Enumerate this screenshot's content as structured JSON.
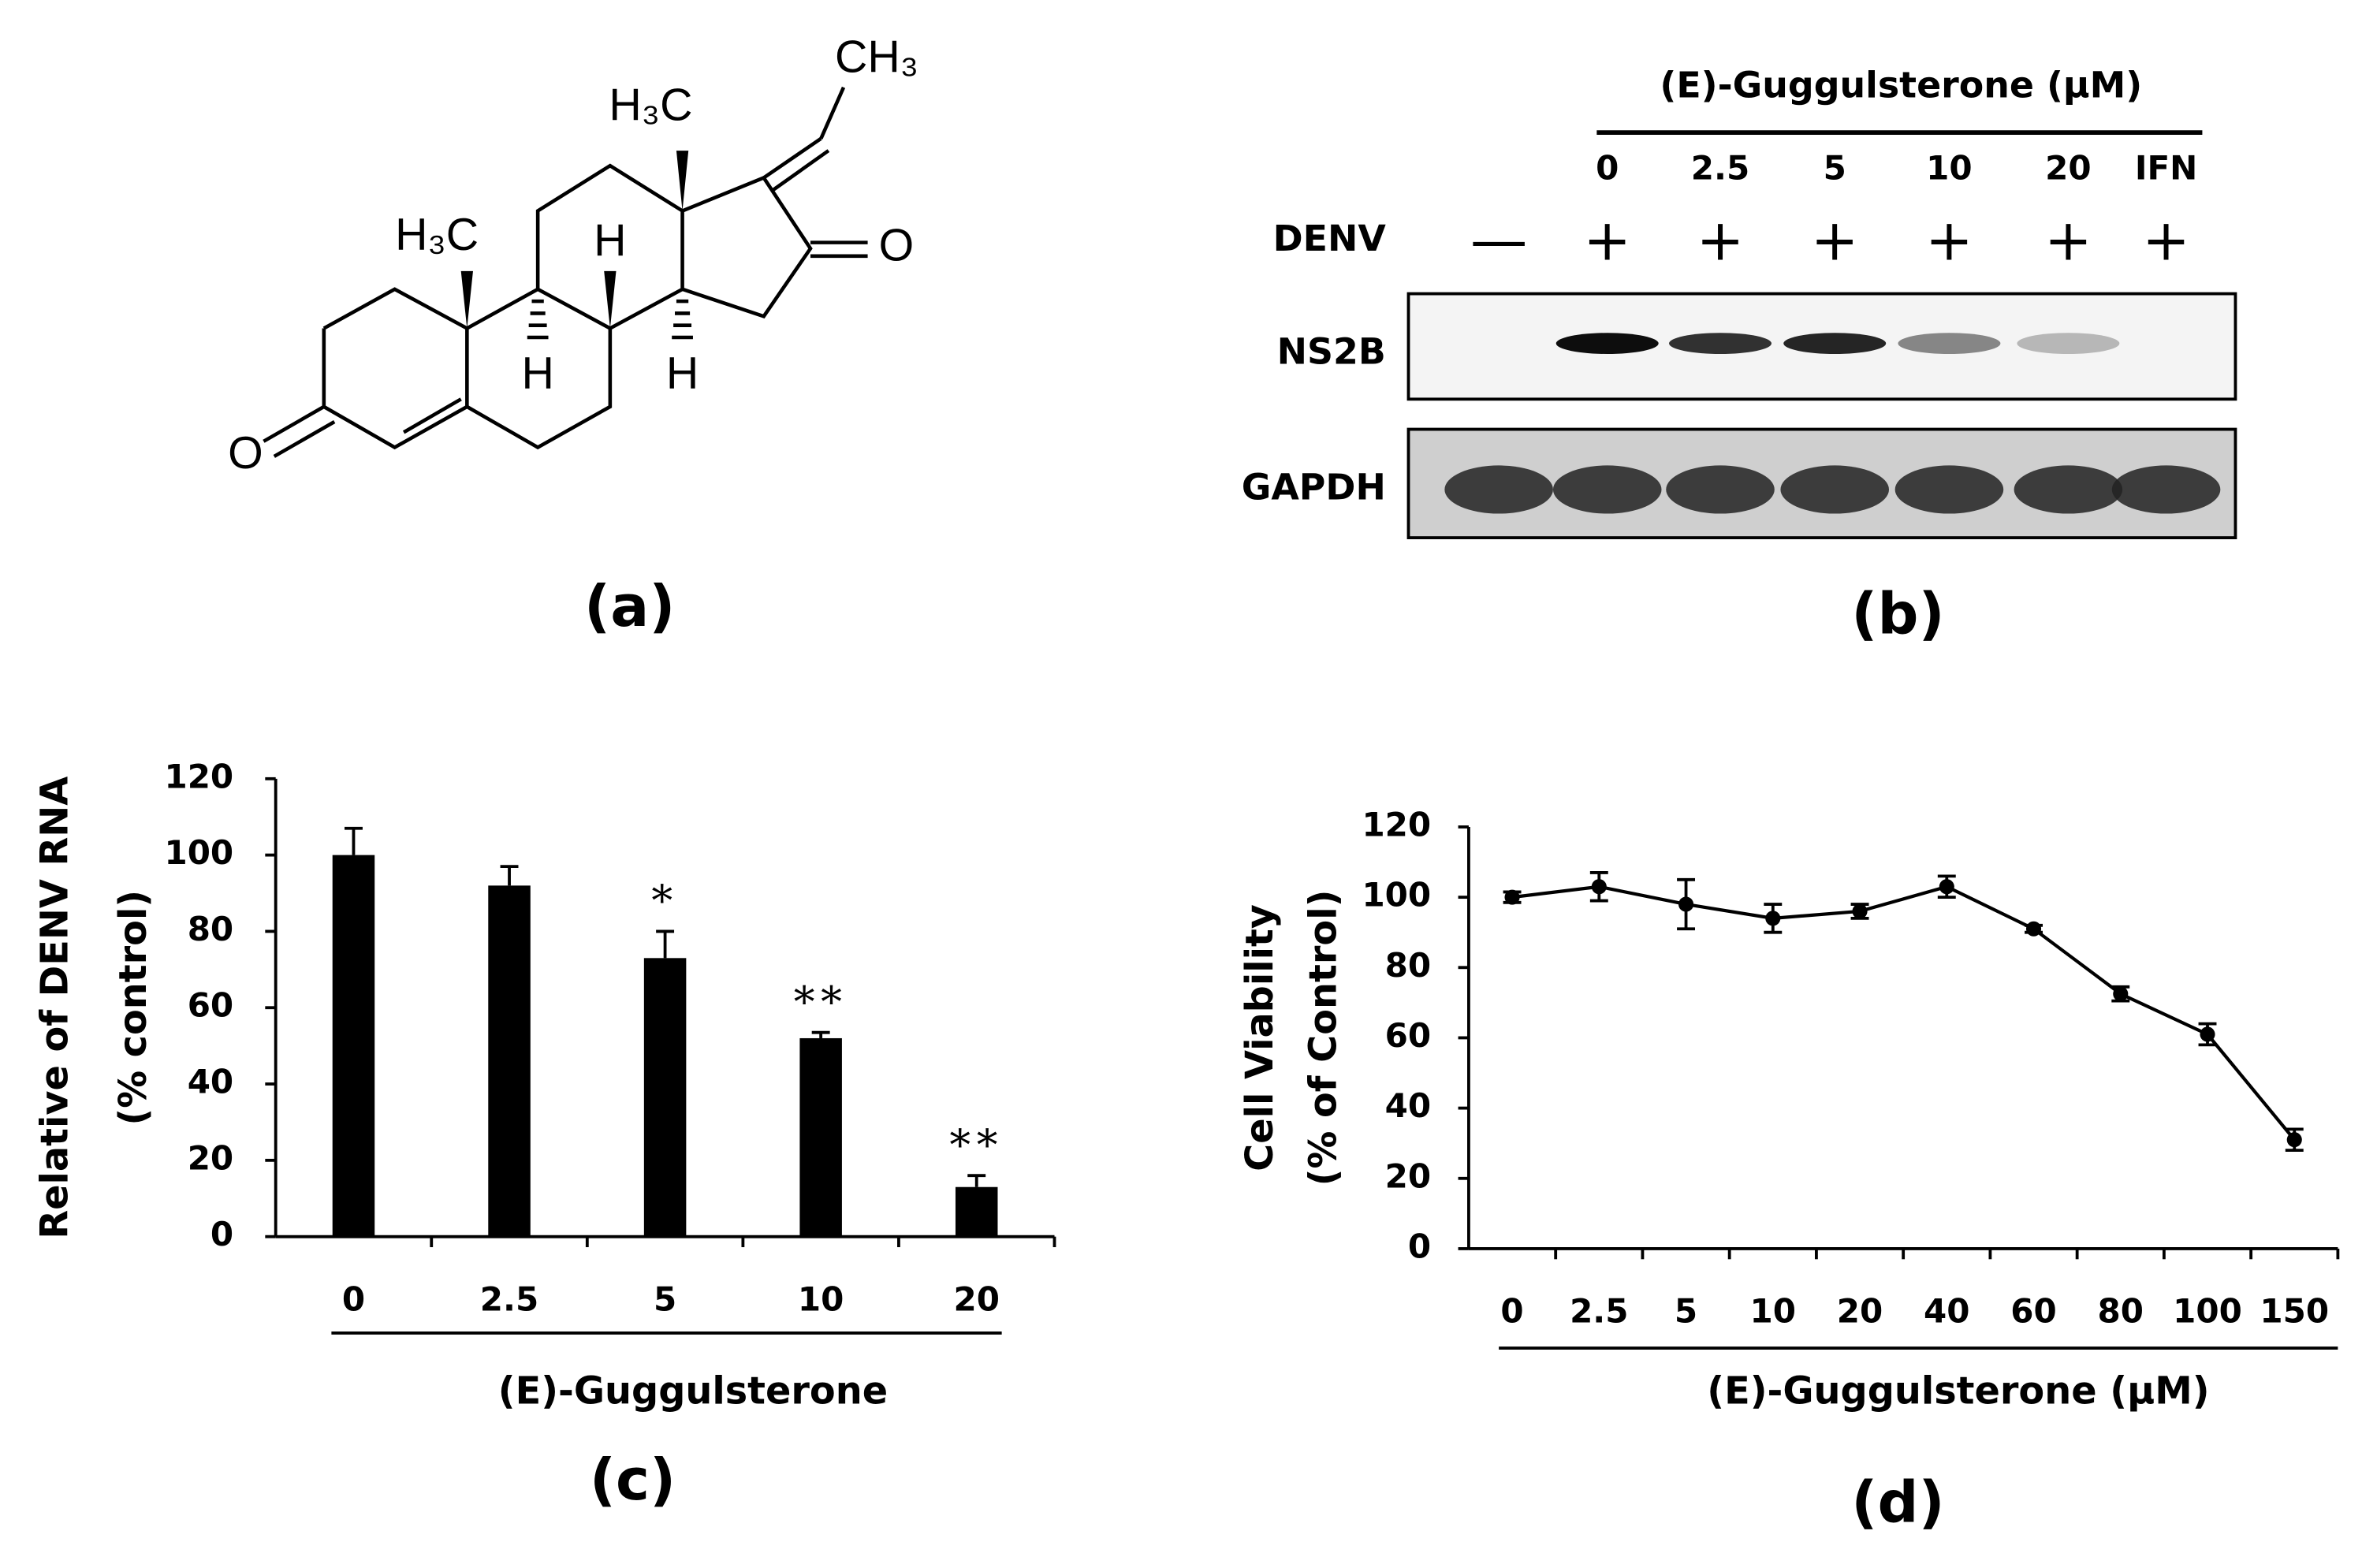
{
  "structure": {
    "label": "(a)",
    "atoms": [
      "CH₃",
      "H₃C",
      "H₃C",
      "O",
      "H",
      "H",
      "H",
      "O"
    ]
  },
  "blot": {
    "label": "(b)",
    "treatment": "(E)-Guggulsterone (μM)",
    "lanes": [
      "0",
      "2.5",
      "5",
      "10",
      "20",
      "IFN"
    ],
    "rows": [
      "DENV",
      "NS2B",
      "GAPDH"
    ],
    "denv": [
      "—",
      "+",
      "+",
      "+",
      "+",
      "+",
      "+"
    ]
  },
  "chart_data": [
    {
      "type": "bar",
      "panel_label": "(c)",
      "ylabel": [
        "Relative of DENV RNA",
        "(% control)"
      ],
      "xlabel": "(E)-Guggulsterone",
      "categories": [
        "0",
        "2.5",
        "5",
        "10",
        "20"
      ],
      "values": [
        100,
        92,
        73,
        52,
        13
      ],
      "errors": [
        7,
        5,
        7,
        1.5,
        3
      ],
      "significance": [
        null,
        null,
        "*",
        "**",
        "**"
      ],
      "color": "#000000",
      "ylim": [
        0,
        120
      ],
      "yticks": [
        0,
        20,
        40,
        60,
        80,
        100,
        120
      ]
    },
    {
      "type": "line",
      "panel_label": "(d)",
      "ylabel": [
        "Cell Viability",
        "(% of Control)"
      ],
      "xlabel": "(E)-Guggulsterone (μM)",
      "categories": [
        "0",
        "2.5",
        "5",
        "10",
        "20",
        "40",
        "60",
        "80",
        "100",
        "150"
      ],
      "values": [
        100,
        103,
        98,
        94,
        96,
        103,
        91,
        72.5,
        61,
        31
      ],
      "errors": [
        1.5,
        4,
        7,
        4,
        2,
        3,
        1,
        2,
        3,
        3
      ],
      "color": "#000000",
      "ylim": [
        0,
        120
      ],
      "yticks": [
        0,
        20,
        40,
        60,
        80,
        100,
        120
      ]
    }
  ]
}
